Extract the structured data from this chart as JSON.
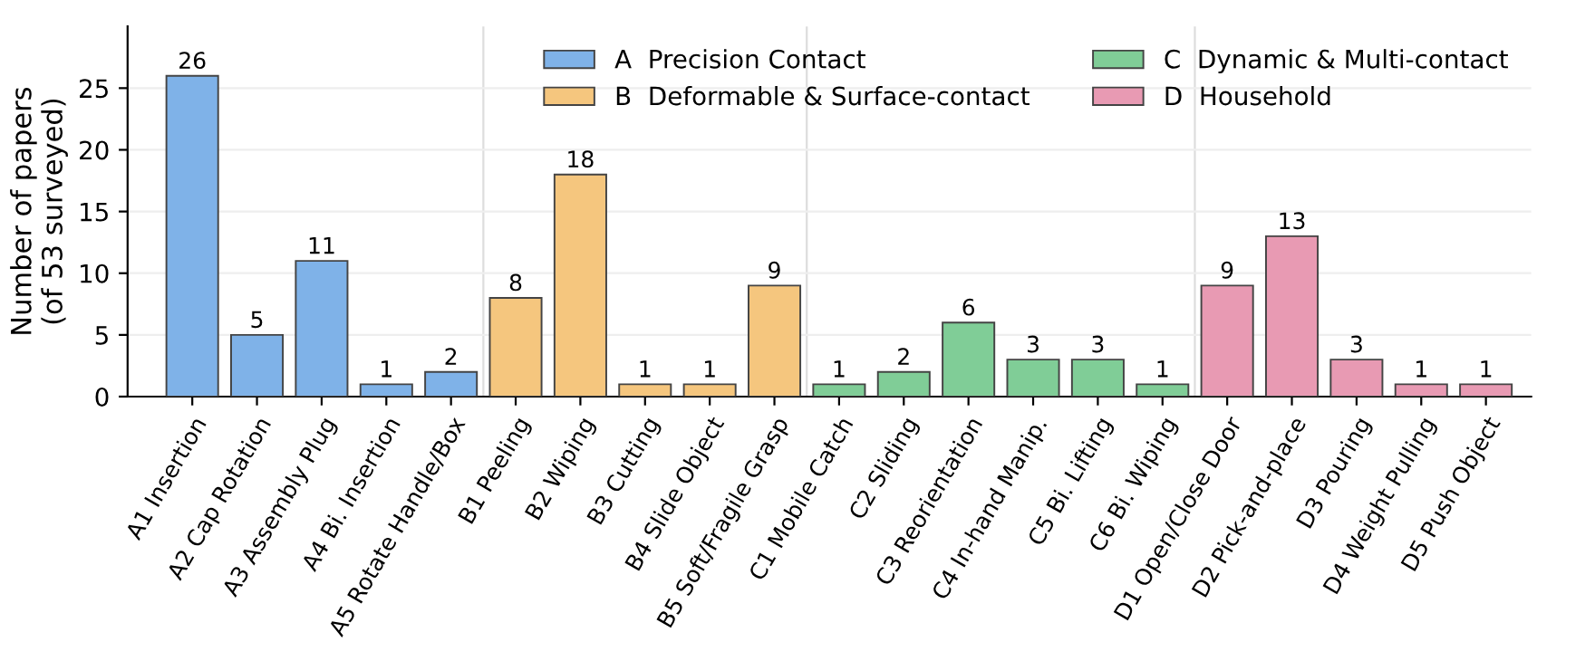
{
  "chart_data": {
    "type": "bar",
    "ylabel": "Number of papers\n(of 53 surveyed)",
    "categories": [
      "A1 Insertion",
      "A2 Cap Rotation",
      "A3 Assembly Plug",
      "A4 Bi. Insertion",
      "A5 Rotate Handle/Box",
      "B1 Peeling",
      "B2 Wiping",
      "B3 Cutting",
      "B4 Slide Object",
      "B5 Soft/Fragile Grasp",
      "C1 Mobile Catch",
      "C2 Sliding",
      "C3 Reorientation",
      "C4 In-hand Manip.",
      "C5 Bi. Lifting",
      "C6 Bi. Wiping",
      "D1 Open/Close Door",
      "D2 Pick-and-place",
      "D3 Pouring",
      "D4 Weight Pulling",
      "D5 Push Object"
    ],
    "series": [
      {
        "name": "A  Precision Contact",
        "color": "#7fb2e8",
        "values": [
          26,
          5,
          11,
          1,
          2,
          null,
          null,
          null,
          null,
          null,
          null,
          null,
          null,
          null,
          null,
          null,
          null,
          null,
          null,
          null,
          null
        ]
      },
      {
        "name": "B  Deformable & Surface-contact",
        "color": "#f5c67e",
        "values": [
          null,
          null,
          null,
          null,
          null,
          8,
          18,
          1,
          1,
          9,
          null,
          null,
          null,
          null,
          null,
          null,
          null,
          null,
          null,
          null,
          null
        ]
      },
      {
        "name": "C  Dynamic & Multi-contact",
        "color": "#80cd97",
        "values": [
          null,
          null,
          null,
          null,
          null,
          null,
          null,
          null,
          null,
          null,
          1,
          2,
          6,
          3,
          3,
          1,
          null,
          null,
          null,
          null,
          null
        ]
      },
      {
        "name": "D  Household",
        "color": "#e89ab3",
        "values": [
          null,
          null,
          null,
          null,
          null,
          null,
          null,
          null,
          null,
          null,
          null,
          null,
          null,
          null,
          null,
          null,
          9,
          13,
          3,
          1,
          1
        ]
      }
    ],
    "ylim": [
      0,
      30
    ],
    "yticks": [
      0,
      5,
      10,
      15,
      20,
      25
    ],
    "data_labels": true,
    "grid": "y",
    "legend": "top right"
  }
}
